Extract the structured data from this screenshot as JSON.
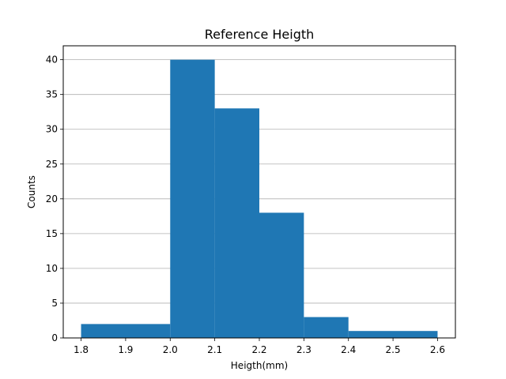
{
  "chart_data": {
    "type": "bar",
    "title": "Reference Heigth",
    "xlabel": "Heigth(mm)",
    "ylabel": "Counts",
    "bins": [
      {
        "start": 1.8,
        "end": 2.0,
        "count": 2
      },
      {
        "start": 2.0,
        "end": 2.1,
        "count": 40
      },
      {
        "start": 2.1,
        "end": 2.2,
        "count": 33
      },
      {
        "start": 2.2,
        "end": 2.3,
        "count": 18
      },
      {
        "start": 2.3,
        "end": 2.4,
        "count": 3
      },
      {
        "start": 2.4,
        "end": 2.6,
        "count": 1
      }
    ],
    "xlim": [
      1.76,
      2.64
    ],
    "ylim": [
      0,
      42
    ],
    "xticks": [
      "1.8",
      "1.9",
      "2.0",
      "2.1",
      "2.2",
      "2.3",
      "2.4",
      "2.5",
      "2.6"
    ],
    "yticks": [
      "0",
      "5",
      "10",
      "15",
      "20",
      "25",
      "30",
      "35",
      "40"
    ],
    "grid": "y",
    "bar_color": "#1f77b4",
    "grid_color": "#b0b0b0"
  }
}
